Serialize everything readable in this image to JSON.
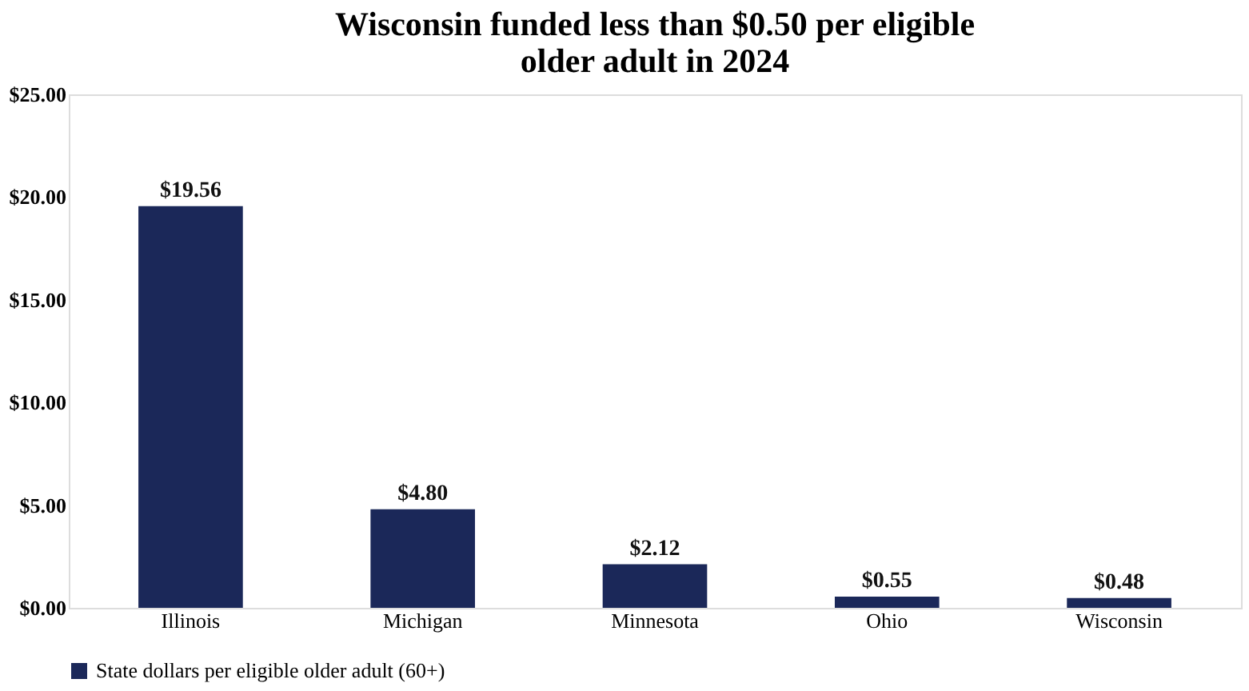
{
  "chart_data": {
    "type": "bar",
    "title": "Wisconsin funded less than $0.50 per eligible older adult in 2024",
    "categories": [
      "Illinois",
      "Michigan",
      "Minnesota",
      "Ohio",
      "Wisconsin"
    ],
    "series": [
      {
        "name": "State dollars per eligible older adult (60+)",
        "color": "#1b2859",
        "values": [
          19.56,
          4.8,
          2.12,
          0.55,
          0.48
        ]
      }
    ],
    "value_labels": [
      "$19.56",
      "$4.80",
      "$2.12",
      "$0.55",
      "$0.48"
    ],
    "ylim": [
      0,
      25
    ],
    "yticks": [
      {
        "value": 0,
        "label": "$0.00"
      },
      {
        "value": 5,
        "label": "$5.00"
      },
      {
        "value": 10,
        "label": "$10.00"
      },
      {
        "value": 15,
        "label": "$15.00"
      },
      {
        "value": 20,
        "label": "$20.00"
      },
      {
        "value": 25,
        "label": "$25.00"
      }
    ],
    "grid": false,
    "legend": "bottom"
  }
}
